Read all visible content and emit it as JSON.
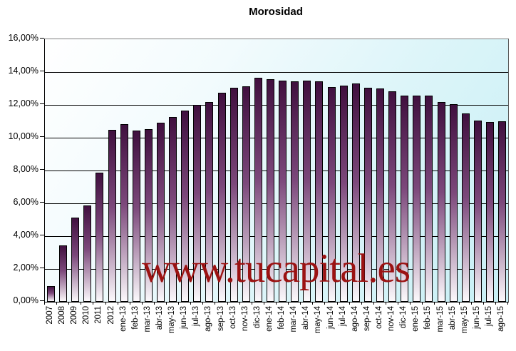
{
  "title": "Morosidad",
  "watermark": "www.tucapital.es",
  "colors": {
    "bar_top": "#40103f",
    "bar_bottom": "#fbf8fb",
    "watermark": "#9b1212",
    "grid": "#000000",
    "plot_border_top": "#808080",
    "plot_bg_start": "#ffffff",
    "plot_bg_end": "#c7eff5"
  },
  "chart_data": {
    "type": "bar",
    "title": "Morosidad",
    "xlabel": "",
    "ylabel": "",
    "ylim": [
      0,
      16
    ],
    "y_tick_step": 2,
    "grid": true,
    "legend": false,
    "y_tick_labels": [
      "16,00%",
      "14,00%",
      "12,00%",
      "10,00%",
      "8,00%",
      "6,00%",
      "4,00%",
      "2,00%",
      "0,00%"
    ],
    "categories": [
      "2007",
      "2008",
      "2009",
      "2010",
      "2011",
      "2012",
      "ene-13",
      "feb-13",
      "mar-13",
      "abr-13",
      "may-13",
      "jun-13",
      "jul-13",
      "ago-13",
      "sep-13",
      "oct-13",
      "nov-13",
      "dic-13",
      "ene-14",
      "feb-14",
      "mar-14",
      "abr-14",
      "may-14",
      "jun-14",
      "jul-14",
      "ago-14",
      "sep-14",
      "oct-14",
      "nov-14",
      "dic-14",
      "ene-15",
      "feb-15",
      "mar-15",
      "abr-15",
      "may-15",
      "jun-15",
      "jul-15",
      "ago-15"
    ],
    "values": [
      0.92,
      3.37,
      5.08,
      5.81,
      7.84,
      10.44,
      10.78,
      10.39,
      10.47,
      10.87,
      11.21,
      11.61,
      11.97,
      12.12,
      12.68,
      12.99,
      13.08,
      13.62,
      13.54,
      13.42,
      13.38,
      13.44,
      13.39,
      13.06,
      13.15,
      13.25,
      13.0,
      12.94,
      12.77,
      12.51,
      12.54,
      12.51,
      12.13,
      12.01,
      11.43,
      11.01,
      10.92,
      10.95
    ]
  }
}
